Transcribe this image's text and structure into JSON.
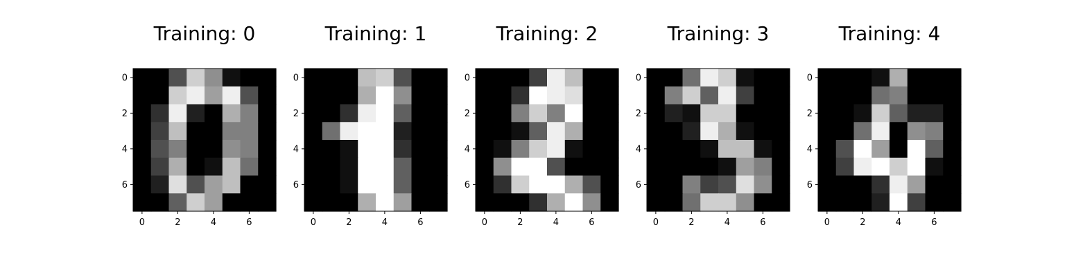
{
  "chart_data": [
    {
      "type": "heatmap",
      "title": "Training: 0",
      "colormap": "gray",
      "value_range": [
        0,
        16
      ],
      "x_ticks": [
        "0",
        "2",
        "4",
        "6"
      ],
      "y_ticks": [
        "0",
        "2",
        "4",
        "6"
      ],
      "grid": false,
      "values": [
        [
          0,
          0,
          5,
          13,
          9,
          1,
          0,
          0
        ],
        [
          0,
          0,
          13,
          15,
          10,
          15,
          5,
          0
        ],
        [
          0,
          3,
          15,
          2,
          0,
          11,
          8,
          0
        ],
        [
          0,
          4,
          12,
          0,
          0,
          8,
          8,
          0
        ],
        [
          0,
          5,
          8,
          0,
          0,
          9,
          8,
          0
        ],
        [
          0,
          4,
          11,
          0,
          1,
          12,
          7,
          0
        ],
        [
          0,
          2,
          14,
          5,
          10,
          12,
          0,
          0
        ],
        [
          0,
          0,
          6,
          13,
          10,
          0,
          0,
          0
        ]
      ]
    },
    {
      "type": "heatmap",
      "title": "Training: 1",
      "colormap": "gray",
      "value_range": [
        0,
        16
      ],
      "x_ticks": [
        "0",
        "2",
        "4",
        "6"
      ],
      "y_ticks": [
        "0",
        "2",
        "4",
        "6"
      ],
      "grid": false,
      "values": [
        [
          0,
          0,
          0,
          12,
          13,
          5,
          0,
          0
        ],
        [
          0,
          0,
          0,
          11,
          16,
          9,
          0,
          0
        ],
        [
          0,
          0,
          3,
          15,
          16,
          6,
          0,
          0
        ],
        [
          0,
          7,
          15,
          16,
          16,
          2,
          0,
          0
        ],
        [
          0,
          0,
          1,
          16,
          16,
          3,
          0,
          0
        ],
        [
          0,
          0,
          1,
          16,
          16,
          6,
          0,
          0
        ],
        [
          0,
          0,
          1,
          16,
          16,
          6,
          0,
          0
        ],
        [
          0,
          0,
          0,
          11,
          16,
          10,
          0,
          0
        ]
      ]
    },
    {
      "type": "heatmap",
      "title": "Training: 2",
      "colormap": "gray",
      "value_range": [
        0,
        16
      ],
      "x_ticks": [
        "0",
        "2",
        "4",
        "6"
      ],
      "y_ticks": [
        "0",
        "2",
        "4",
        "6"
      ],
      "grid": false,
      "values": [
        [
          0,
          0,
          0,
          4,
          15,
          12,
          0,
          0
        ],
        [
          0,
          0,
          3,
          16,
          15,
          14,
          0,
          0
        ],
        [
          0,
          0,
          8,
          13,
          8,
          16,
          0,
          0
        ],
        [
          0,
          0,
          1,
          6,
          15,
          11,
          0,
          0
        ],
        [
          0,
          1,
          8,
          13,
          15,
          1,
          0,
          0
        ],
        [
          0,
          9,
          16,
          16,
          5,
          0,
          0,
          0
        ],
        [
          0,
          3,
          13,
          16,
          16,
          11,
          5,
          0
        ],
        [
          0,
          0,
          0,
          3,
          11,
          16,
          9,
          0
        ]
      ]
    },
    {
      "type": "heatmap",
      "title": "Training: 3",
      "colormap": "gray",
      "value_range": [
        0,
        16
      ],
      "x_ticks": [
        "0",
        "2",
        "4",
        "6"
      ],
      "y_ticks": [
        "0",
        "2",
        "4",
        "6"
      ],
      "grid": false,
      "values": [
        [
          0,
          0,
          7,
          15,
          13,
          1,
          0,
          0
        ],
        [
          0,
          8,
          13,
          6,
          15,
          4,
          0,
          0
        ],
        [
          0,
          2,
          1,
          13,
          13,
          0,
          0,
          0
        ],
        [
          0,
          0,
          2,
          15,
          11,
          1,
          0,
          0
        ],
        [
          0,
          0,
          0,
          1,
          12,
          12,
          1,
          0
        ],
        [
          0,
          0,
          0,
          0,
          1,
          10,
          8,
          0
        ],
        [
          0,
          0,
          8,
          4,
          5,
          14,
          9,
          0
        ],
        [
          0,
          0,
          7,
          13,
          13,
          9,
          0,
          0
        ]
      ]
    },
    {
      "type": "heatmap",
      "title": "Training: 4",
      "colormap": "gray",
      "value_range": [
        0,
        16
      ],
      "x_ticks": [
        "0",
        "2",
        "4",
        "6"
      ],
      "y_ticks": [
        "0",
        "2",
        "4",
        "6"
      ],
      "grid": false,
      "values": [
        [
          0,
          0,
          0,
          1,
          11,
          0,
          0,
          0
        ],
        [
          0,
          0,
          0,
          7,
          8,
          0,
          0,
          0
        ],
        [
          0,
          0,
          1,
          13,
          6,
          2,
          2,
          0
        ],
        [
          0,
          0,
          7,
          15,
          0,
          9,
          8,
          0
        ],
        [
          0,
          5,
          16,
          10,
          0,
          16,
          6,
          0
        ],
        [
          0,
          4,
          15,
          16,
          13,
          16,
          1,
          0
        ],
        [
          0,
          0,
          0,
          3,
          15,
          10,
          0,
          0
        ],
        [
          0,
          0,
          0,
          2,
          16,
          4,
          0,
          0
        ]
      ]
    }
  ]
}
